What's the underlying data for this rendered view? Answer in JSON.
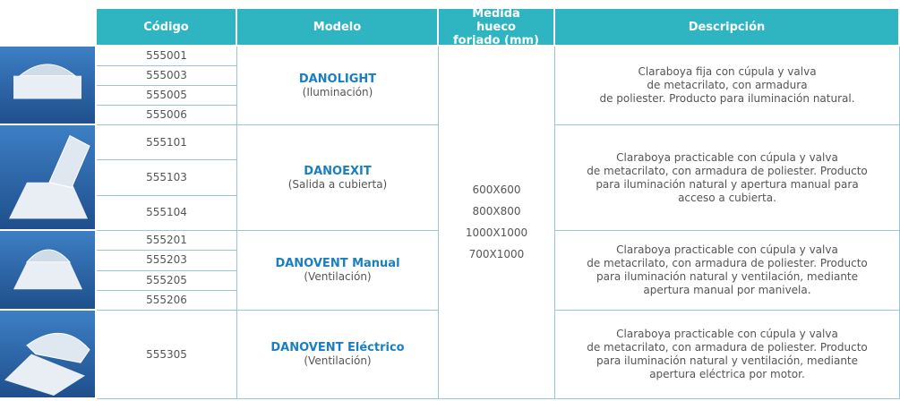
{
  "header": {
    "columns": [
      "Código",
      "Modelo",
      "Medida hueco forjado (mm)",
      "Descripción"
    ]
  },
  "measures": [
    "600X600",
    "800X800",
    "1000X1000",
    "700X1000"
  ],
  "groups": [
    {
      "codes": [
        "555001",
        "555003",
        "555005",
        "555006"
      ],
      "model": "DANOLIGHT",
      "use": "(Iluminación)",
      "description": [
        "Claraboya fija con cúpula y valva",
        "de metacrilato, con armadura",
        "de poliester. Producto para iluminación natural."
      ]
    },
    {
      "codes": [
        "555101",
        "555103",
        "555104"
      ],
      "model": "DANOEXIT",
      "use": "(Salida a cubierta)",
      "description": [
        "Claraboya practicable con cúpula y valva",
        "de metacrilato, con armadura de poliester. Producto",
        "para iluminación natural y apertura manual para",
        "acceso a cubierta."
      ]
    },
    {
      "codes": [
        "555201",
        "555203",
        "555205",
        "555206"
      ],
      "model": "DANOVENT Manual",
      "use": "(Ventilación)",
      "description": [
        "Claraboya practicable con cúpula y valva",
        "de metacrilato, con armadura de poliester. Producto",
        "para iluminación natural y ventilación, mediante",
        "apertura manual por manivela."
      ]
    },
    {
      "codes": [
        "555305"
      ],
      "model": "DANOVENT Eléctrico",
      "use": "(Ventilación)",
      "description": [
        "Claraboya practicable con cúpula y valva",
        "de metacrilato, con armadura de poliester. Producto",
        "para iluminación natural y ventilación, mediante",
        "apertura eléctrica por motor."
      ]
    }
  ]
}
